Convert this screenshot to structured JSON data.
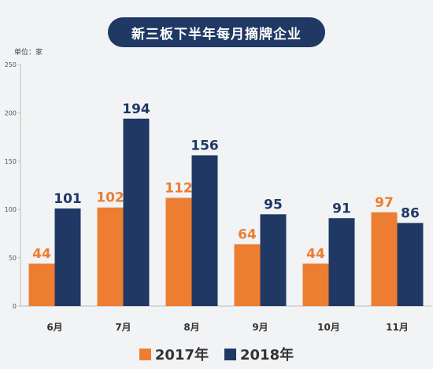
{
  "unit_label": "单位：家",
  "colors": {
    "s2017": "#ed7d31",
    "s2018": "#1f3864",
    "axis": "#bbbbbb",
    "tick": "#333333"
  },
  "chart_data": {
    "type": "bar",
    "title": "新三板下半年每月摘牌企业",
    "categories": [
      "6月",
      "7月",
      "8月",
      "9月",
      "10月",
      "11月"
    ],
    "series": [
      {
        "name": "2017年",
        "values": [
          44,
          102,
          112,
          64,
          44,
          97
        ]
      },
      {
        "name": "2018年",
        "values": [
          101,
          194,
          156,
          95,
          91,
          86
        ]
      }
    ],
    "ylim": [
      0,
      250
    ],
    "yticks": [
      0,
      50,
      100,
      150,
      200,
      250
    ],
    "grid": false,
    "legend": "bottom"
  }
}
